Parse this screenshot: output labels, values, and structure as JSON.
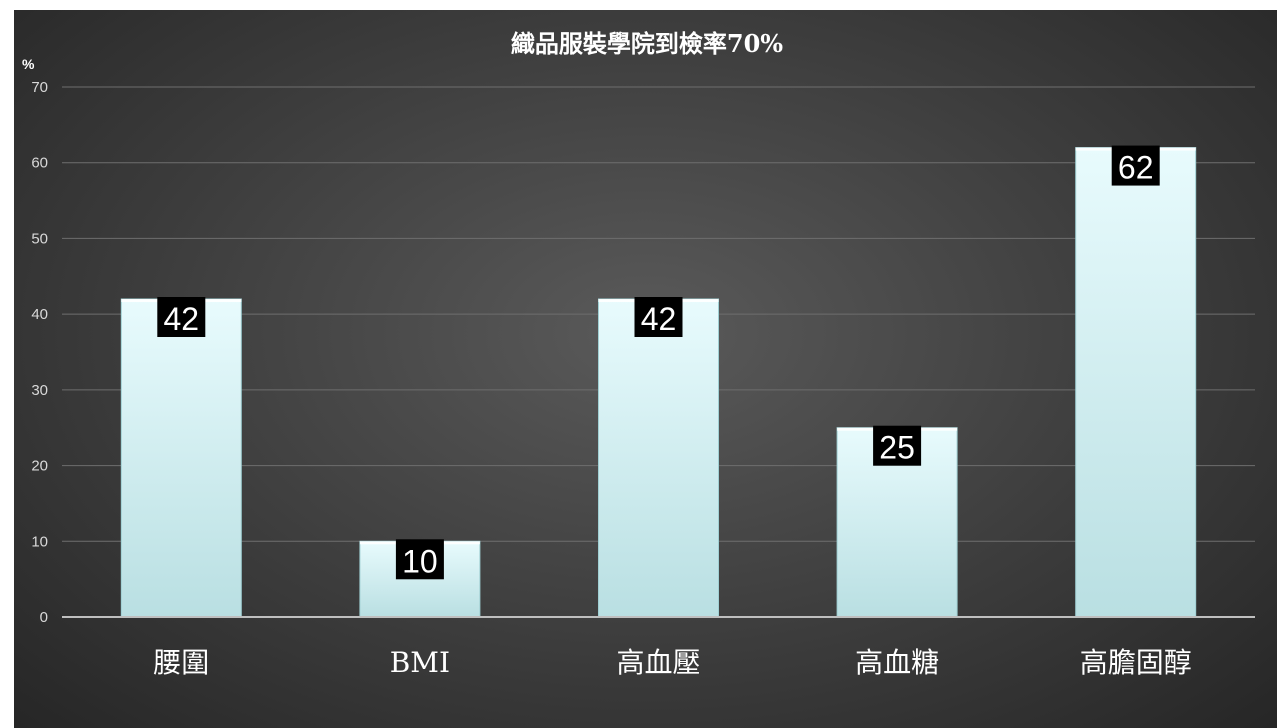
{
  "chart_data": {
    "type": "bar",
    "title": "織品服裝學院到檢率70%",
    "ylabel": "%",
    "xlabel": "",
    "categories": [
      "腰圍",
      "BMI",
      "高血壓",
      "高血糖",
      "高膽固醇"
    ],
    "values": [
      42,
      10,
      42,
      25,
      62
    ],
    "ylim": [
      0,
      70
    ],
    "yticks": [
      0,
      10,
      20,
      30,
      40,
      50,
      60,
      70
    ],
    "grid": true,
    "legend": "none",
    "colors": {
      "bar_top": "#e6fafc",
      "bar_bottom": "#bfe3e6",
      "label_bg": "#000000",
      "label_text": "#ffffff",
      "background": "#3f3f3f"
    }
  }
}
